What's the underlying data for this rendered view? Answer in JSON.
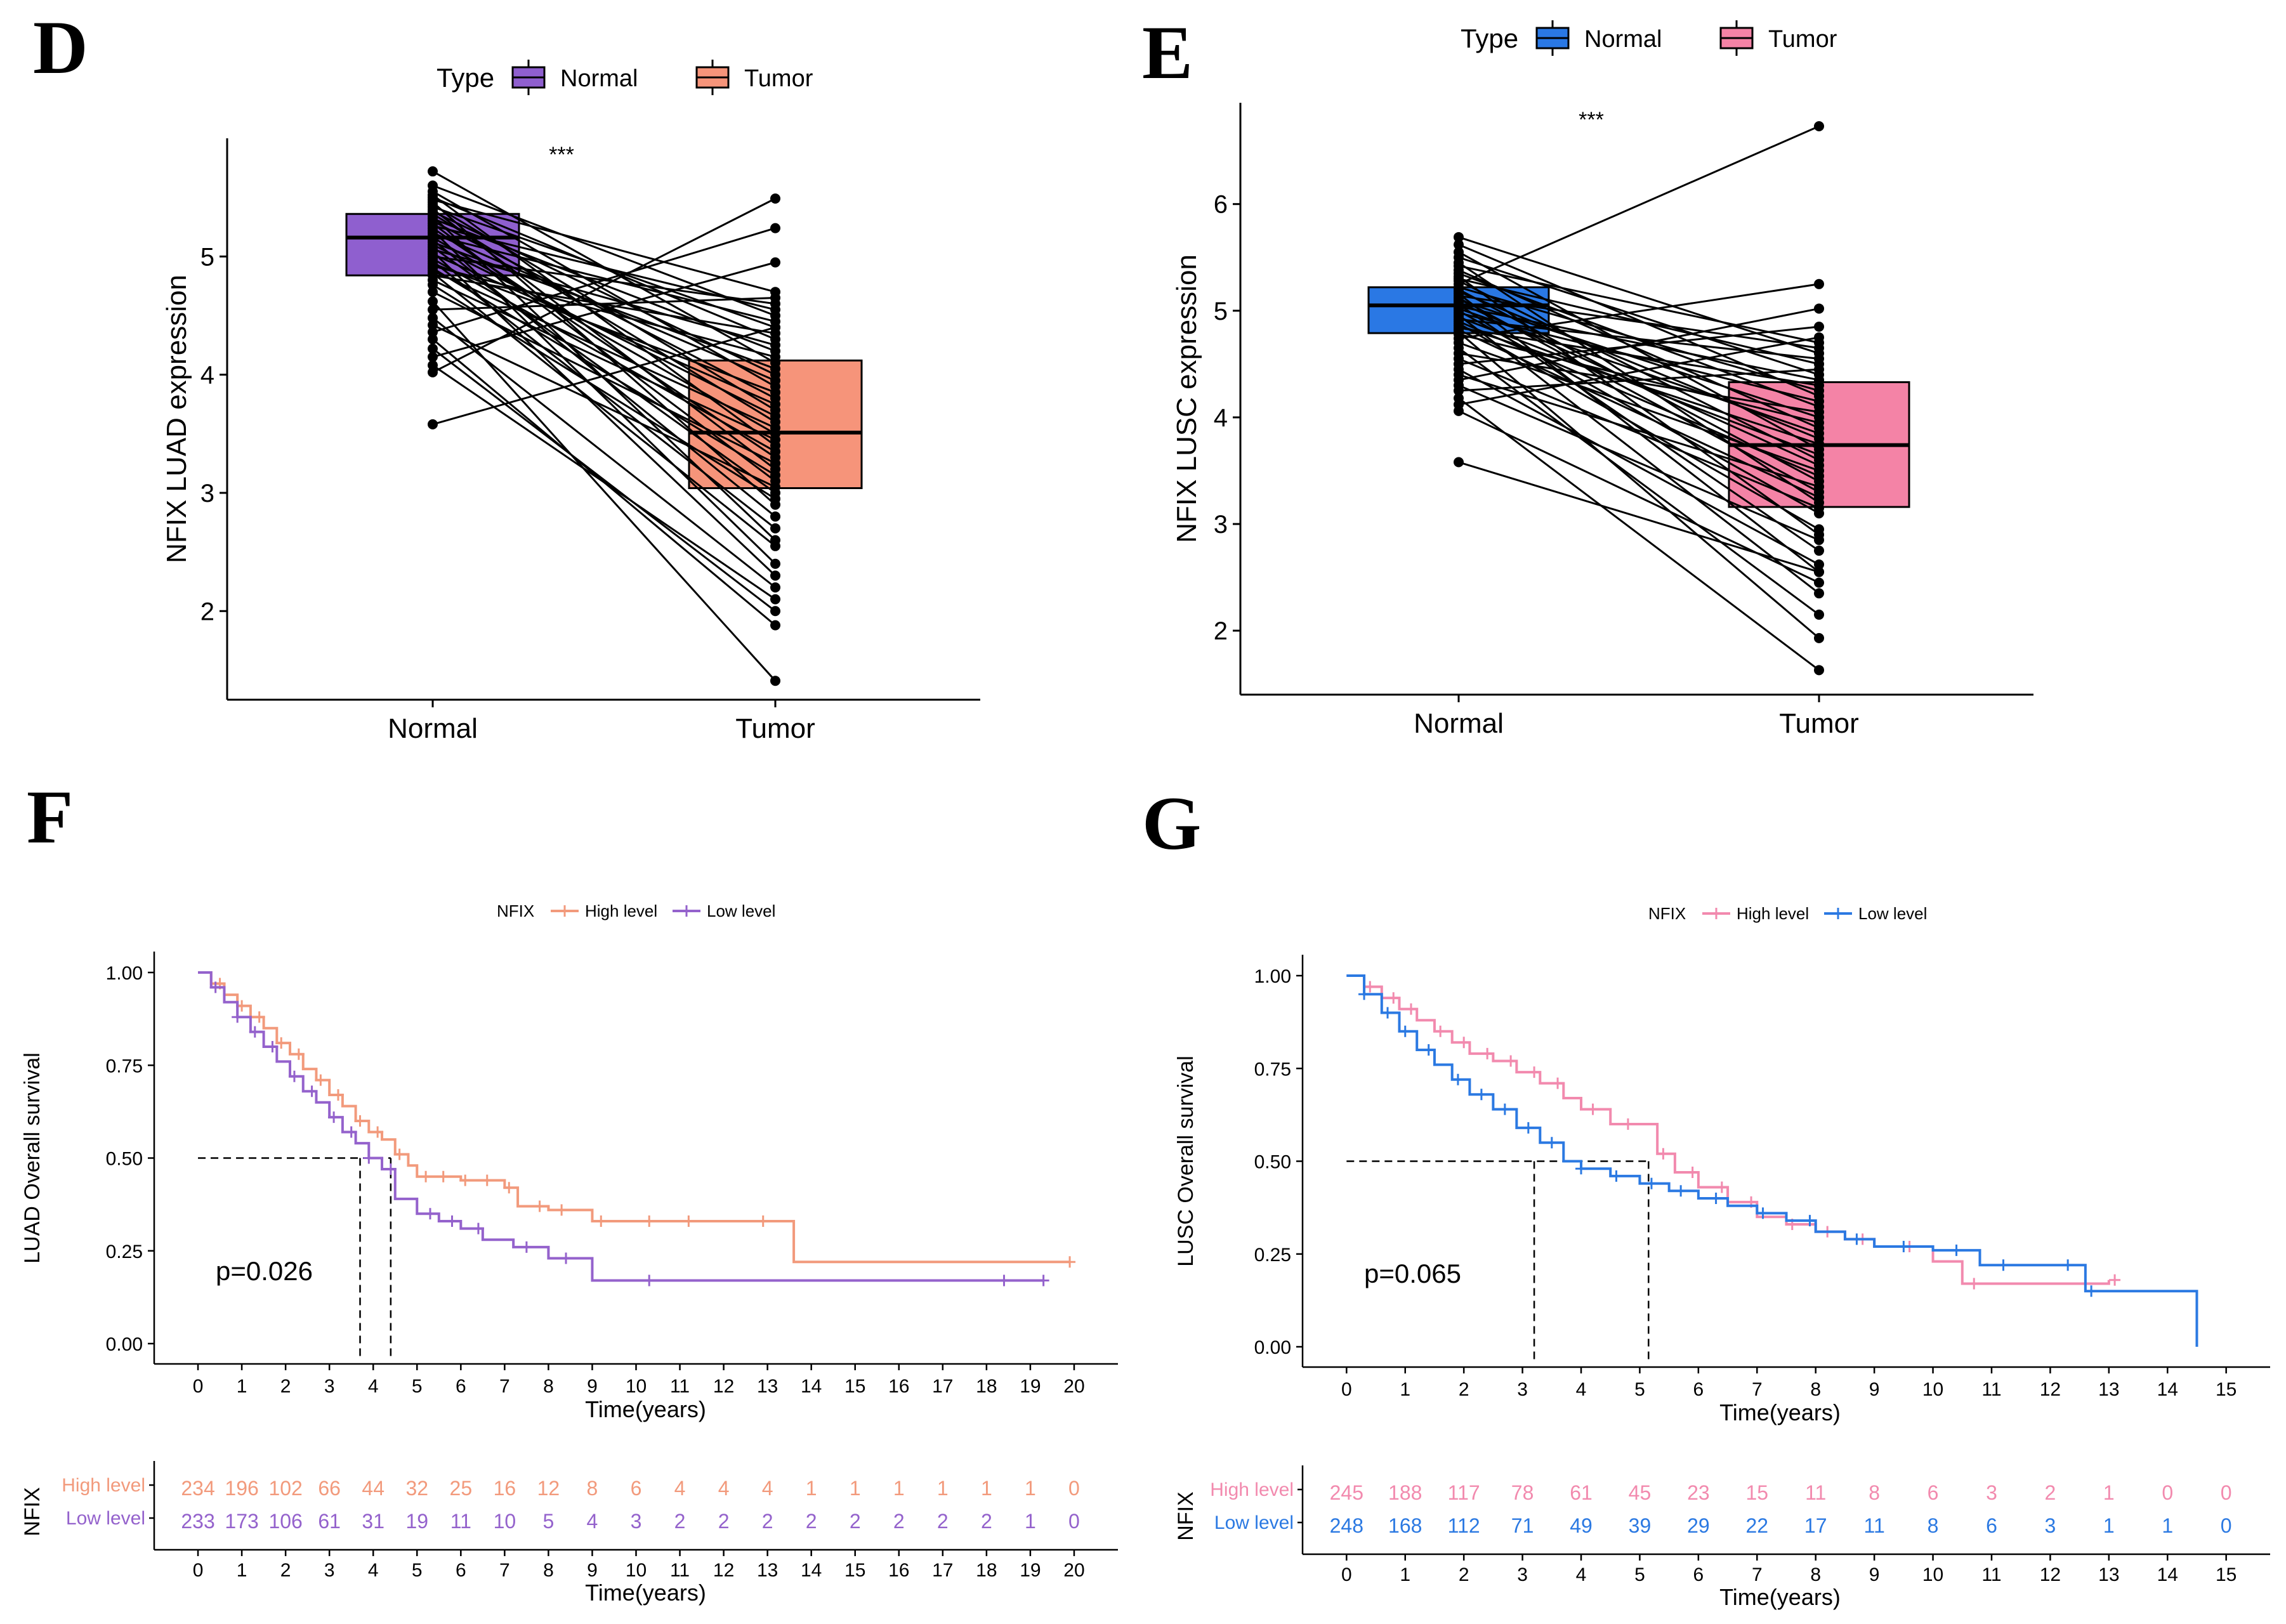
{
  "colors": {
    "luad_normal": "#8f5fcf",
    "luad_tumor": "#f6947a",
    "lusc_normal": "#2a78e4",
    "lusc_tumor": "#f483a6",
    "luad_high": "#f29a7c",
    "luad_low": "#9462cc",
    "lusc_high": "#f28aae",
    "lusc_low": "#2b79e2",
    "axis": "#000000"
  },
  "chart_data": [
    {
      "panel": "D",
      "type": "box",
      "legend_title": "Type",
      "legend": [
        "Normal",
        "Tumor"
      ],
      "ylabel": "NFIX  LUAD expression",
      "categories": [
        "Normal",
        "Tumor"
      ],
      "ylim": [
        1.25,
        6.0
      ],
      "yticks": [
        "2",
        "3",
        "4",
        "5"
      ],
      "significance": "***",
      "boxes": [
        {
          "name": "Normal",
          "q1": 4.84,
          "median": 5.16,
          "q3": 5.36,
          "min": 3.58,
          "max": 5.72
        },
        {
          "name": "Tumor",
          "q1": 3.04,
          "median": 3.51,
          "q3": 4.12,
          "min": 1.41,
          "max": 5.49
        }
      ],
      "paired_points": [
        [
          5.72,
          4.1
        ],
        [
          5.6,
          4.5
        ],
        [
          5.55,
          3.9
        ],
        [
          5.52,
          3.4
        ],
        [
          5.5,
          4.3
        ],
        [
          5.48,
          4.7
        ],
        [
          5.46,
          2.9
        ],
        [
          5.44,
          3.7
        ],
        [
          5.42,
          4.4
        ],
        [
          5.4,
          3.2
        ],
        [
          5.38,
          4.0
        ],
        [
          5.36,
          3.6
        ],
        [
          5.34,
          2.6
        ],
        [
          5.32,
          4.2
        ],
        [
          5.3,
          3.8
        ],
        [
          5.28,
          3.1
        ],
        [
          5.26,
          4.55
        ],
        [
          5.24,
          3.3
        ],
        [
          5.22,
          2.4
        ],
        [
          5.2,
          3.95
        ],
        [
          5.18,
          4.45
        ],
        [
          5.16,
          3.5
        ],
        [
          5.14,
          2.8
        ],
        [
          5.12,
          4.05
        ],
        [
          5.1,
          3.65
        ],
        [
          5.08,
          3.0
        ],
        [
          5.06,
          4.25
        ],
        [
          5.04,
          2.3
        ],
        [
          5.02,
          3.75
        ],
        [
          5.0,
          4.6
        ],
        [
          4.98,
          3.35
        ],
        [
          4.96,
          2.7
        ],
        [
          4.94,
          3.85
        ],
        [
          4.92,
          4.15
        ],
        [
          4.9,
          3.15
        ],
        [
          4.88,
          3.55
        ],
        [
          4.86,
          2.55
        ],
        [
          4.84,
          4.35
        ],
        [
          4.8,
          3.45
        ],
        [
          4.76,
          2.95
        ],
        [
          4.7,
          3.25
        ],
        [
          4.62,
          1.41
        ],
        [
          4.55,
          4.65
        ],
        [
          4.48,
          2.2
        ],
        [
          4.42,
          3.05
        ],
        [
          4.36,
          5.24
        ],
        [
          4.3,
          1.88
        ],
        [
          4.22,
          2.0
        ],
        [
          4.15,
          4.95
        ],
        [
          4.08,
          2.1
        ],
        [
          4.02,
          5.49
        ],
        [
          3.58,
          4.4
        ]
      ]
    },
    {
      "panel": "E",
      "type": "box",
      "legend_title": "Type",
      "legend": [
        "Normal",
        "Tumor"
      ],
      "ylabel": "NFIX  LUSC expression",
      "categories": [
        "Normal",
        "Tumor"
      ],
      "ylim": [
        1.4,
        6.95
      ],
      "yticks": [
        "2",
        "3",
        "4",
        "5",
        "6"
      ],
      "significance": "***",
      "boxes": [
        {
          "name": "Normal",
          "q1": 4.79,
          "median": 5.05,
          "q3": 5.22,
          "min": 3.58,
          "max": 5.69
        },
        {
          "name": "Tumor",
          "q1": 3.16,
          "median": 3.74,
          "q3": 4.33,
          "min": 1.63,
          "max": 6.73
        }
      ],
      "paired_points": [
        [
          5.69,
          4.6
        ],
        [
          5.62,
          4.2
        ],
        [
          5.55,
          3.7
        ],
        [
          5.5,
          4.4
        ],
        [
          5.45,
          3.2
        ],
        [
          5.42,
          4.7
        ],
        [
          5.38,
          3.9
        ],
        [
          5.35,
          4.1
        ],
        [
          5.32,
          2.9
        ],
        [
          5.3,
          4.5
        ],
        [
          5.28,
          3.6
        ],
        [
          5.25,
          6.73
        ],
        [
          5.22,
          4.25
        ],
        [
          5.2,
          3.4
        ],
        [
          5.18,
          3.8
        ],
        [
          5.16,
          2.55
        ],
        [
          5.14,
          4.65
        ],
        [
          5.12,
          3.3
        ],
        [
          5.1,
          4.0
        ],
        [
          5.08,
          3.55
        ],
        [
          5.06,
          2.75
        ],
        [
          5.04,
          4.35
        ],
        [
          5.02,
          3.85
        ],
        [
          5.0,
          3.1
        ],
        [
          4.98,
          4.15
        ],
        [
          4.96,
          2.35
        ],
        [
          4.94,
          3.65
        ],
        [
          4.92,
          4.55
        ],
        [
          4.9,
          3.45
        ],
        [
          4.88,
          2.95
        ],
        [
          4.86,
          3.75
        ],
        [
          4.84,
          4.3
        ],
        [
          4.82,
          3.25
        ],
        [
          4.8,
          1.93
        ],
        [
          4.78,
          3.95
        ],
        [
          4.74,
          5.25
        ],
        [
          4.7,
          3.5
        ],
        [
          4.65,
          2.15
        ],
        [
          4.6,
          4.05
        ],
        [
          4.55,
          3.15
        ],
        [
          4.5,
          4.85
        ],
        [
          4.45,
          2.62
        ],
        [
          4.4,
          3.35
        ],
        [
          4.35,
          5.02
        ],
        [
          4.3,
          2.85
        ],
        [
          4.25,
          4.45
        ],
        [
          4.18,
          1.63
        ],
        [
          4.12,
          4.75
        ],
        [
          4.06,
          2.45
        ],
        [
          3.58,
          2.55
        ]
      ]
    },
    {
      "panel": "F",
      "type": "line",
      "subtype": "kaplan-meier",
      "legend_title": "NFIX",
      "legend": [
        "High level",
        "Low level"
      ],
      "xlabel": "Time(years)",
      "ylabel": "LUAD Overall survival",
      "xlim": [
        -1,
        21
      ],
      "ylim": [
        0,
        1
      ],
      "xticks": [
        "0",
        "1",
        "2",
        "3",
        "4",
        "5",
        "6",
        "7",
        "8",
        "9",
        "10",
        "11",
        "12",
        "13",
        "14",
        "15",
        "16",
        "17",
        "18",
        "19",
        "20"
      ],
      "yticks": [
        "0.00",
        "0.25",
        "0.50",
        "0.75",
        "1.00"
      ],
      "pvalue": "p=0.026",
      "median_survival": [
        4.4,
        3.7
      ],
      "series": [
        {
          "name": "High level",
          "x": [
            0,
            0.3,
            0.6,
            0.9,
            1.2,
            1.5,
            1.8,
            2.1,
            2.4,
            2.7,
            3.0,
            3.3,
            3.6,
            3.9,
            4.2,
            4.5,
            4.8,
            5.0,
            6.0,
            7.0,
            7.3,
            8.0,
            8.5,
            9.0,
            10.0,
            12.0,
            13.0,
            13.6,
            18.0,
            19.9
          ],
          "y": [
            1.0,
            0.97,
            0.94,
            0.91,
            0.88,
            0.85,
            0.81,
            0.78,
            0.74,
            0.71,
            0.67,
            0.64,
            0.6,
            0.57,
            0.55,
            0.51,
            0.48,
            0.45,
            0.44,
            0.42,
            0.37,
            0.36,
            0.36,
            0.33,
            0.33,
            0.33,
            0.33,
            0.22,
            0.22,
            0.22
          ],
          "censors": [
            0.5,
            1.0,
            1.4,
            1.9,
            2.3,
            2.8,
            3.2,
            3.7,
            4.1,
            4.6,
            5.2,
            5.6,
            6.1,
            6.6,
            7.1,
            7.8,
            8.3,
            9.2,
            10.3,
            11.2,
            12.9,
            19.9
          ]
        },
        {
          "name": "Low level",
          "x": [
            0,
            0.3,
            0.6,
            0.9,
            1.2,
            1.5,
            1.8,
            2.1,
            2.4,
            2.7,
            3.0,
            3.3,
            3.6,
            3.9,
            4.2,
            4.5,
            5.0,
            5.5,
            6.0,
            6.5,
            7.2,
            8.0,
            9.0,
            10.5,
            12.0,
            15.0,
            18.0,
            19.3
          ],
          "y": [
            1.0,
            0.96,
            0.92,
            0.88,
            0.84,
            0.8,
            0.76,
            0.72,
            0.68,
            0.65,
            0.61,
            0.57,
            0.54,
            0.5,
            0.47,
            0.39,
            0.35,
            0.33,
            0.31,
            0.28,
            0.26,
            0.23,
            0.17,
            0.17,
            0.17,
            0.17,
            0.17,
            0.17
          ],
          "censors": [
            0.4,
            0.9,
            1.3,
            1.7,
            2.2,
            2.6,
            3.1,
            3.5,
            3.9,
            4.4,
            5.3,
            5.8,
            6.4,
            7.5,
            8.4,
            10.3,
            18.4,
            19.3
          ]
        }
      ],
      "risk_table": {
        "title": "NFIX",
        "rows": [
          {
            "label": "High level",
            "values": [
              "234",
              "196",
              "102",
              "66",
              "44",
              "32",
              "25",
              "16",
              "12",
              "8",
              "6",
              "4",
              "4",
              "4",
              "1",
              "1",
              "1",
              "1",
              "1",
              "1",
              "0"
            ]
          },
          {
            "label": "Low level",
            "values": [
              "233",
              "173",
              "106",
              "61",
              "31",
              "19",
              "11",
              "10",
              "5",
              "4",
              "3",
              "2",
              "2",
              "2",
              "2",
              "2",
              "2",
              "2",
              "2",
              "1",
              "0"
            ]
          }
        ],
        "xlabel": "Time(years)"
      }
    },
    {
      "panel": "G",
      "type": "line",
      "subtype": "kaplan-meier",
      "legend_title": "NFIX",
      "legend": [
        "High level",
        "Low level"
      ],
      "xlabel": "Time(years)",
      "ylabel": "LUSC Overall survival",
      "xlim": [
        -0.75,
        15.75
      ],
      "ylim": [
        0,
        1
      ],
      "xticks": [
        "0",
        "1",
        "2",
        "3",
        "4",
        "5",
        "6",
        "7",
        "8",
        "9",
        "10",
        "11",
        "12",
        "13",
        "14",
        "15"
      ],
      "yticks": [
        "0.00",
        "0.25",
        "0.50",
        "0.75",
        "1.00"
      ],
      "pvalue": "p=0.065",
      "median_survival": [
        5.15,
        3.2
      ],
      "series": [
        {
          "name": "High level",
          "x": [
            0,
            0.3,
            0.6,
            0.9,
            1.2,
            1.5,
            1.8,
            2.1,
            2.5,
            2.9,
            3.3,
            3.7,
            4.0,
            4.5,
            5.0,
            5.3,
            5.6,
            6.0,
            6.5,
            7.0,
            7.5,
            8.0,
            8.5,
            9.0,
            10.0,
            10.5,
            11.5,
            13.0
          ],
          "y": [
            1.0,
            0.97,
            0.94,
            0.91,
            0.88,
            0.85,
            0.82,
            0.79,
            0.77,
            0.74,
            0.71,
            0.67,
            0.64,
            0.6,
            0.6,
            0.52,
            0.47,
            0.43,
            0.39,
            0.35,
            0.33,
            0.31,
            0.29,
            0.27,
            0.23,
            0.17,
            0.17,
            0.18
          ],
          "censors": [
            0.4,
            0.8,
            1.1,
            1.6,
            2.0,
            2.4,
            2.8,
            3.2,
            3.6,
            4.2,
            4.8,
            5.4,
            5.9,
            6.4,
            6.9,
            7.6,
            8.2,
            8.8,
            9.6,
            10.7,
            13.1
          ]
        },
        {
          "name": "Low level",
          "x": [
            0,
            0.3,
            0.6,
            0.9,
            1.2,
            1.5,
            1.8,
            2.1,
            2.5,
            2.9,
            3.3,
            3.7,
            4.0,
            4.5,
            5.0,
            5.5,
            6.0,
            6.5,
            7.0,
            7.5,
            8.0,
            8.5,
            9.0,
            10.0,
            10.8,
            12.0,
            12.6,
            13.0,
            14.5
          ],
          "y": [
            1.0,
            0.95,
            0.9,
            0.85,
            0.8,
            0.76,
            0.72,
            0.68,
            0.64,
            0.59,
            0.55,
            0.5,
            0.48,
            0.46,
            0.44,
            0.42,
            0.4,
            0.38,
            0.36,
            0.34,
            0.31,
            0.29,
            0.27,
            0.26,
            0.22,
            0.22,
            0.15,
            0.15,
            0.0
          ],
          "censors": [
            0.3,
            0.7,
            1.0,
            1.4,
            1.9,
            2.3,
            2.7,
            3.1,
            3.5,
            4.0,
            4.6,
            5.2,
            5.7,
            6.3,
            7.1,
            7.9,
            8.7,
            9.5,
            10.4,
            11.2,
            12.3,
            12.7
          ]
        }
      ],
      "risk_table": {
        "title": "NFIX",
        "rows": [
          {
            "label": "High level",
            "values": [
              "245",
              "188",
              "117",
              "78",
              "61",
              "45",
              "23",
              "15",
              "11",
              "8",
              "6",
              "3",
              "2",
              "1",
              "0",
              "0"
            ]
          },
          {
            "label": "Low level",
            "values": [
              "248",
              "168",
              "112",
              "71",
              "49",
              "39",
              "29",
              "22",
              "17",
              "11",
              "8",
              "6",
              "3",
              "1",
              "1",
              "0"
            ]
          }
        ],
        "xlabel": "Time(years)"
      }
    }
  ]
}
